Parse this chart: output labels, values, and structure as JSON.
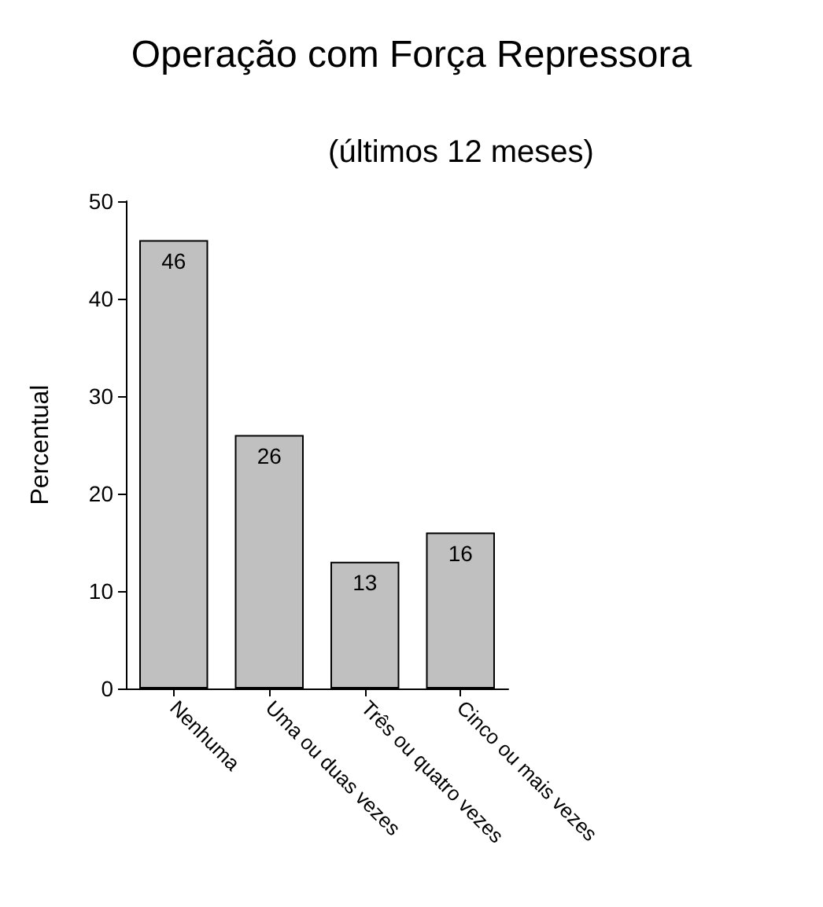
{
  "chart_data": {
    "type": "bar",
    "title": "Operação com Força Repressora",
    "subtitle": "(últimos 12 meses)",
    "ylabel": "Percentual",
    "categories": [
      "Nenhuma",
      "Uma ou duas vezes",
      "Três ou quatro vezes",
      "Cinco ou mais vezes"
    ],
    "values": [
      46,
      26,
      13,
      16
    ],
    "color": "#c0c0c0",
    "ylim": [
      0,
      50
    ],
    "yticks": [
      0,
      10,
      20,
      30,
      40,
      50
    ],
    "data_labels": true
  }
}
